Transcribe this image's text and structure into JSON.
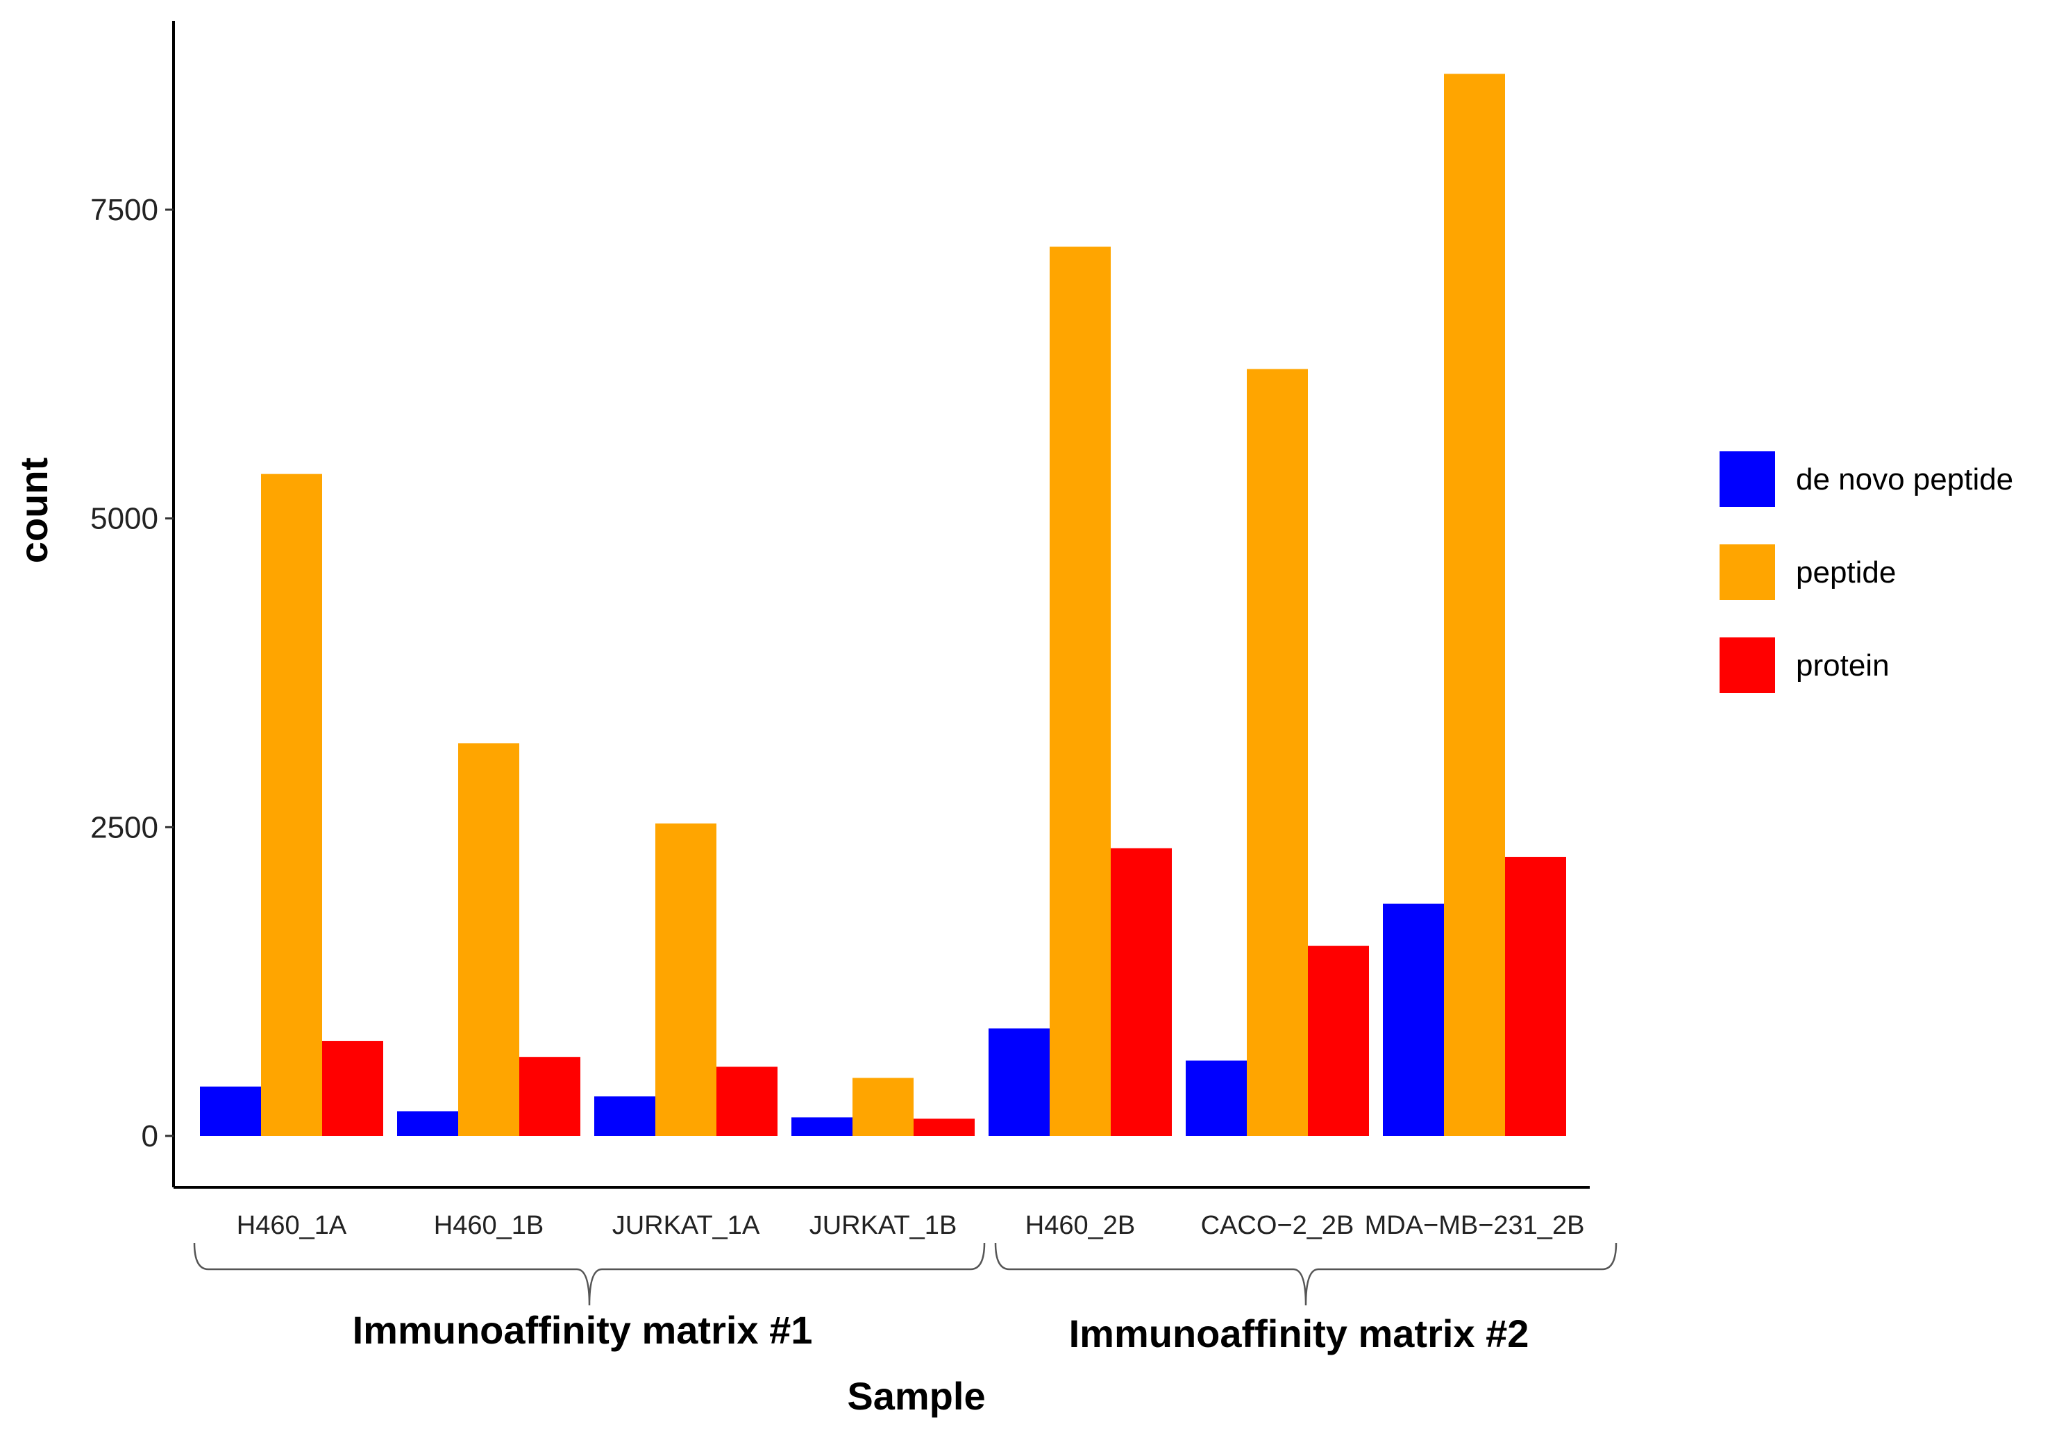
{
  "chart_data": {
    "type": "bar",
    "xlabel": "Sample",
    "ylabel": "count",
    "ylim": [
      -350,
      8900
    ],
    "yticks": [
      0,
      2500,
      5000,
      7500
    ],
    "ytick_labels": [
      "0",
      "2500",
      "5000",
      "7500"
    ],
    "categories": [
      "H460_1A",
      "H460_1B",
      "JURKAT_1A",
      "JURKAT_1B",
      "H460_2B",
      "CACO−2_2B",
      "MDA−MB−231_2B"
    ],
    "series": [
      {
        "name": "de novo peptide",
        "color": "#0000ff",
        "values": [
          400,
          200,
          320,
          150,
          870,
          610,
          1880
        ]
      },
      {
        "name": "peptide",
        "color": "#ffa500",
        "values": [
          5360,
          3180,
          2530,
          470,
          7200,
          6210,
          8600
        ]
      },
      {
        "name": "protein",
        "color": "#ff0000",
        "values": [
          770,
          640,
          560,
          140,
          2330,
          1540,
          2260
        ]
      }
    ],
    "groups": [
      {
        "label": "Immunoaffinity matrix #1",
        "categories": [
          "H460_1A",
          "H460_1B",
          "JURKAT_1A",
          "JURKAT_1B"
        ]
      },
      {
        "label": "Immunoaffinity matrix #2",
        "categories": [
          "H460_2B",
          "CACO−2_2B",
          "MDA−MB−231_2B"
        ]
      }
    ],
    "legend": {
      "position": "right"
    },
    "grid": false
  }
}
